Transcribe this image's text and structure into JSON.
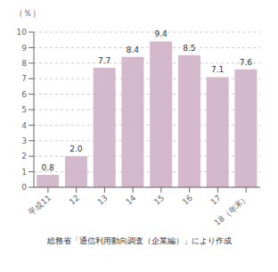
{
  "chart_data": {
    "type": "bar",
    "ylabel": "（％）",
    "annotations": [
      "総務省「通信利用動向調査（企業編）」により作成"
    ],
    "categories": [
      "平成11",
      "12",
      "13",
      "14",
      "15",
      "16",
      "17",
      "18（年末）"
    ],
    "values": [
      0.8,
      2.0,
      7.7,
      8.4,
      9.4,
      8.5,
      7.1,
      7.6
    ],
    "value_labels": [
      "0.8",
      "2.0",
      "7.7",
      "8.4",
      "9.4",
      "8.5",
      "7.1",
      "7.6"
    ],
    "data_labels": true,
    "color": "#d4b8cc",
    "ylim": [
      0,
      10
    ],
    "yticks": [
      0,
      1,
      2,
      3,
      4,
      5,
      6,
      7,
      8,
      9,
      10
    ],
    "grid": true
  }
}
